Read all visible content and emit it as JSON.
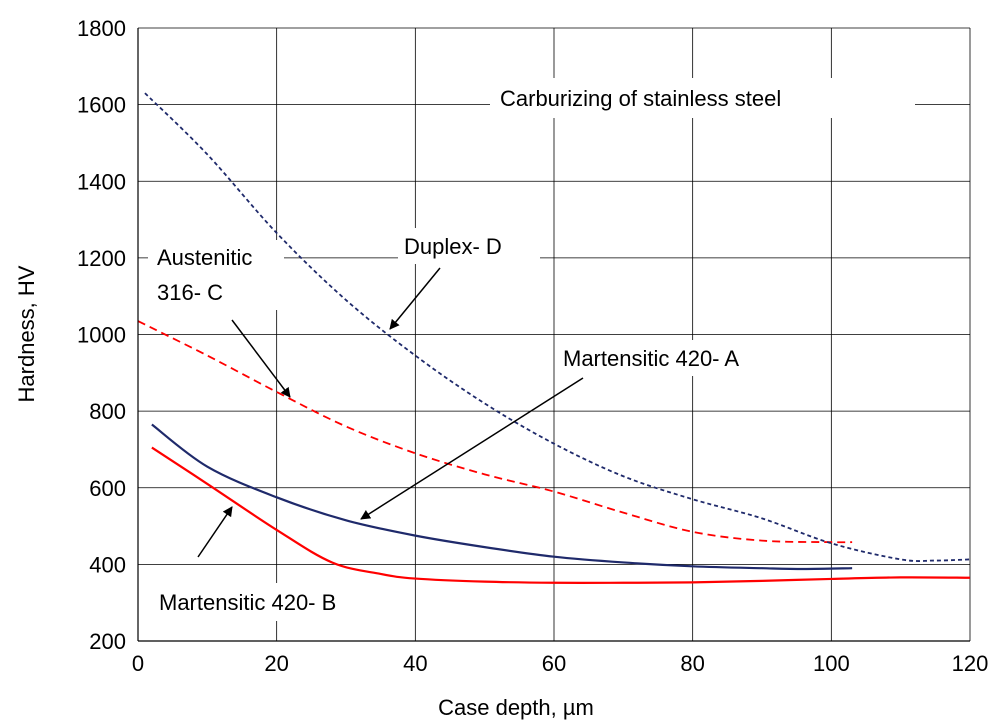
{
  "chart_data": {
    "type": "line",
    "title": "Carburizing of stainless steel",
    "xlabel": "Case depth, µm",
    "ylabel": "Hardness, HV",
    "xlim": [
      0,
      120
    ],
    "ylim": [
      200,
      1800
    ],
    "xticks": [
      0,
      20,
      40,
      60,
      80,
      100,
      120
    ],
    "yticks": [
      200,
      400,
      600,
      800,
      1000,
      1200,
      1400,
      1600,
      1800
    ],
    "grid": true,
    "series": [
      {
        "name": "Martensitic 420- A",
        "color": "#1f2a6b",
        "style": "solid",
        "x": [
          2,
          10,
          20,
          30,
          40,
          50,
          60,
          70,
          80,
          90,
          96,
          103
        ],
        "y": [
          765,
          655,
          575,
          515,
          475,
          445,
          420,
          405,
          395,
          390,
          388,
          390
        ]
      },
      {
        "name": "Martensitic 420- B",
        "color": "#ff0000",
        "style": "solid",
        "x": [
          2,
          10,
          20,
          28,
          35,
          40,
          50,
          60,
          70,
          80,
          90,
          100,
          110,
          120
        ],
        "y": [
          705,
          610,
          490,
          405,
          375,
          363,
          355,
          352,
          352,
          353,
          357,
          362,
          366,
          365
        ]
      },
      {
        "name": "Austenitic 316- C",
        "color": "#ff0000",
        "style": "dashed",
        "x": [
          0,
          10,
          20,
          30,
          40,
          50,
          60,
          70,
          80,
          90,
          100,
          103
        ],
        "y": [
          1035,
          945,
          850,
          760,
          690,
          635,
          590,
          535,
          485,
          462,
          458,
          458
        ]
      },
      {
        "name": "Duplex- D",
        "color": "#1f2a6b",
        "style": "dashed",
        "x": [
          1,
          10,
          20,
          30,
          40,
          50,
          60,
          70,
          80,
          90,
          100,
          110,
          115,
          120
        ],
        "y": [
          1630,
          1470,
          1265,
          1090,
          945,
          820,
          715,
          630,
          570,
          520,
          455,
          413,
          410,
          413
        ]
      }
    ],
    "annotations": {
      "title_label": "Carburizing of stainless steel",
      "duplex_label": "Duplex- D",
      "austenitic_label_line1": "Austenitic",
      "austenitic_label_line2": "316- C",
      "mart_a_label": "Martensitic 420- A",
      "mart_b_label": "Martensitic 420- B"
    }
  }
}
